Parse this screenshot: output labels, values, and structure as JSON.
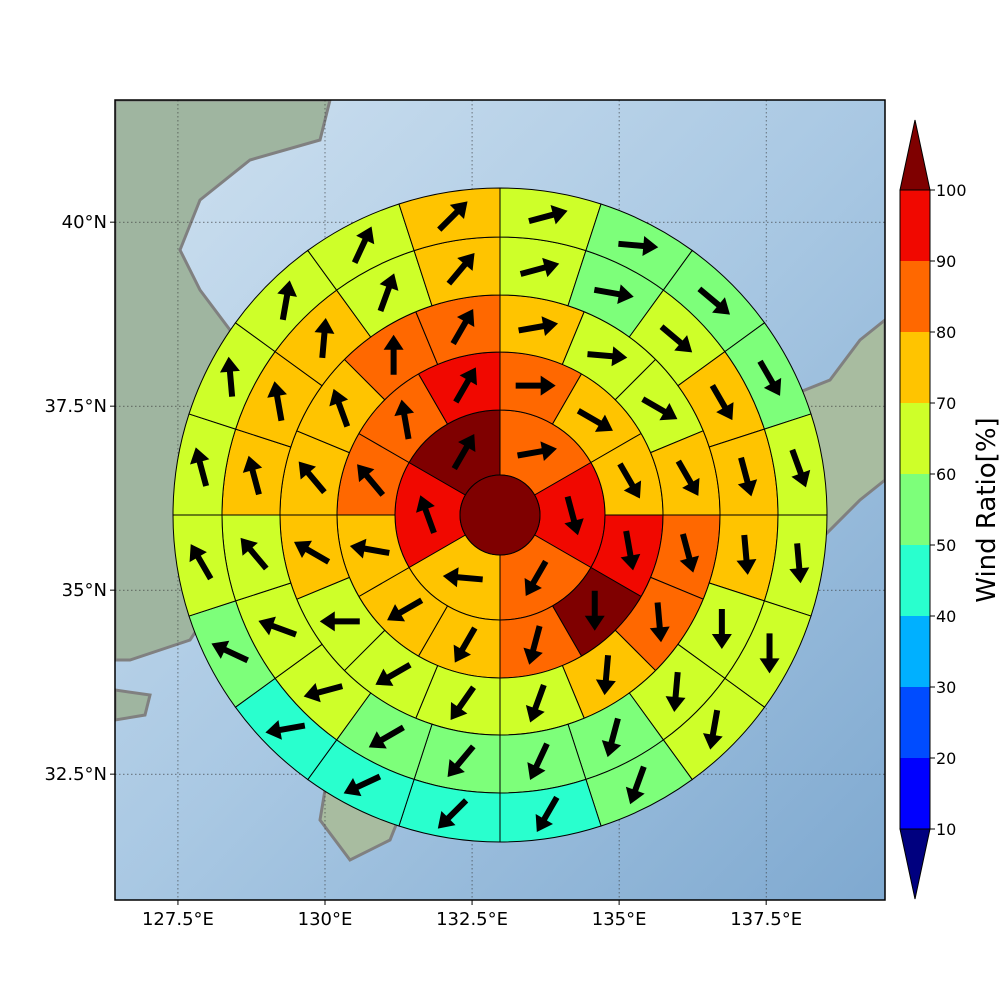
{
  "chart_data": {
    "type": "map",
    "xlim": [
      126.43,
      139.52
    ],
    "ylim": [
      30.79,
      41.66
    ],
    "xticks": [
      {
        "value": 127.5,
        "label": "127.5°E"
      },
      {
        "value": 130,
        "label": "130°E"
      },
      {
        "value": 132.5,
        "label": "132.5°E"
      },
      {
        "value": 135,
        "label": "135°E"
      },
      {
        "value": 137.5,
        "label": "137.5°E"
      }
    ],
    "yticks": [
      {
        "value": 32.5,
        "label": "32.5°N"
      },
      {
        "value": 35,
        "label": "35°N"
      },
      {
        "value": 37.5,
        "label": "37.5°N"
      },
      {
        "value": 40,
        "label": "40°N"
      }
    ],
    "grid": true,
    "colorbar": {
      "label": "Wind Ratio[%]",
      "ticks": [
        10,
        20,
        30,
        40,
        50,
        60,
        70,
        80,
        90,
        100
      ],
      "colors": [
        "#00007f",
        "#0000ff",
        "#004cff",
        "#00b0ff",
        "#29ffce",
        "#7dff7a",
        "#ceff29",
        "#ffc400",
        "#ff6800",
        "#f10800",
        "#7f0000"
      ]
    },
    "center": {
      "value": 100
    },
    "rings": [
      {
        "values": [
          85,
          95,
          85,
          75,
          95,
          100
        ],
        "directions": [
          80,
          165,
          210,
          275,
          340,
          30
        ]
      },
      {
        "values": [
          85,
          75,
          75,
          95,
          100,
          85,
          75,
          75,
          75,
          85,
          85,
          95
        ],
        "directions": [
          90,
          120,
          150,
          170,
          180,
          195,
          210,
          240,
          280,
          320,
          350,
          30
        ]
      },
      {
        "values": [
          75,
          65,
          65,
          75,
          85,
          85,
          75,
          65,
          65,
          65,
          65,
          75,
          75,
          75,
          85,
          85
        ],
        "directions": [
          80,
          95,
          120,
          150,
          165,
          175,
          185,
          200,
          215,
          240,
          270,
          300,
          320,
          340,
          0,
          30
        ]
      },
      {
        "values": [
          65,
          55,
          65,
          75,
          75,
          75,
          65,
          65,
          55,
          55,
          55,
          55,
          65,
          65,
          65,
          75,
          75,
          75,
          65,
          75
        ],
        "directions": [
          75,
          100,
          130,
          150,
          165,
          175,
          180,
          185,
          195,
          205,
          220,
          240,
          255,
          290,
          320,
          345,
          350,
          5,
          20,
          40
        ]
      },
      {
        "values": [
          65,
          55,
          55,
          55,
          65,
          65,
          65,
          65,
          55,
          45,
          45,
          45,
          45,
          55,
          65,
          65,
          65,
          65,
          65,
          75
        ],
        "directions": [
          75,
          95,
          130,
          150,
          160,
          175,
          180,
          190,
          200,
          210,
          225,
          245,
          260,
          295,
          330,
          345,
          355,
          10,
          25,
          45
        ]
      }
    ]
  }
}
